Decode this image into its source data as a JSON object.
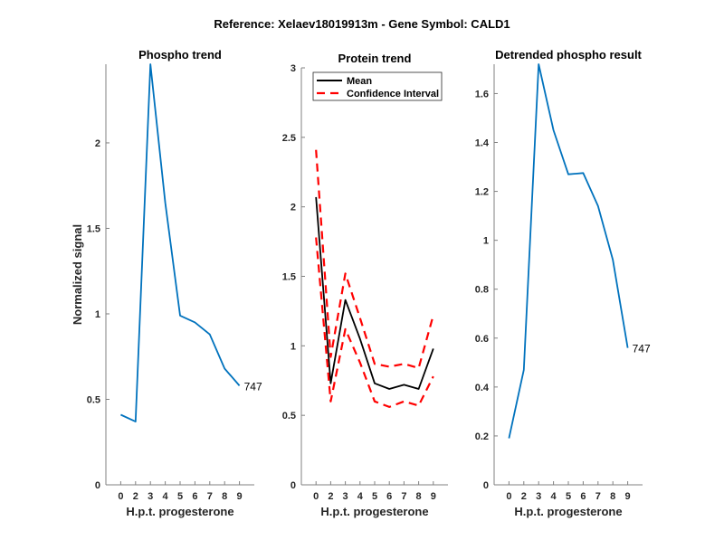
{
  "figure_title": "Reference:  Xelaev18019913m - Gene Symbol:  CALD1",
  "chart_data": [
    {
      "type": "line",
      "title": "Phospho trend",
      "xlabel": "H.p.t. progesterone",
      "ylabel": "Normalized signal",
      "categories": [
        "0",
        "2",
        "3",
        "4",
        "5",
        "6",
        "7",
        "8",
        "9"
      ],
      "ylim": [
        0,
        2.46
      ],
      "yticks": [
        0,
        0.5,
        1,
        1.5,
        2
      ],
      "ytick_labels": [
        "0",
        "0.5",
        "1",
        "1.5",
        "2"
      ],
      "series": [
        {
          "name": "747",
          "color": "#0072BD",
          "style": "solid",
          "values": [
            0.41,
            0.37,
            2.46,
            1.65,
            0.99,
            0.95,
            0.88,
            0.68,
            0.58
          ]
        }
      ],
      "annotation": "747"
    },
    {
      "type": "line",
      "title": "Protein trend",
      "xlabel": "H.p.t. progesterone",
      "ylabel": "",
      "categories": [
        "0",
        "2",
        "3",
        "4",
        "5",
        "6",
        "7",
        "8",
        "9"
      ],
      "ylim": [
        0,
        3
      ],
      "yticks": [
        0,
        0.5,
        1,
        1.5,
        2,
        2.5,
        3
      ],
      "ytick_labels": [
        "0",
        "0.5",
        "1",
        "1.5",
        "2",
        "2.5",
        "3"
      ],
      "legend": {
        "position": "top-left",
        "entries": [
          "Mean",
          "Confidence Interval"
        ]
      },
      "series": [
        {
          "name": "Mean",
          "color": "#000000",
          "style": "solid",
          "values": [
            2.07,
            0.73,
            1.33,
            1.05,
            0.73,
            0.69,
            0.72,
            0.69,
            0.98
          ]
        },
        {
          "name": "Confidence Interval (upper)",
          "color": "#FF0000",
          "style": "dashed",
          "values": [
            2.41,
            0.92,
            1.52,
            1.2,
            0.87,
            0.85,
            0.87,
            0.84,
            1.22
          ]
        },
        {
          "name": "Confidence Interval (lower)",
          "color": "#FF0000",
          "style": "dashed",
          "values": [
            1.78,
            0.6,
            1.12,
            0.88,
            0.6,
            0.56,
            0.6,
            0.57,
            0.78
          ]
        }
      ]
    },
    {
      "type": "line",
      "title": "Detrended phospho result",
      "xlabel": "H.p.t. progesterone",
      "ylabel": "",
      "categories": [
        "0",
        "2",
        "3",
        "4",
        "5",
        "6",
        "7",
        "8",
        "9"
      ],
      "ylim": [
        0,
        1.72
      ],
      "yticks": [
        0,
        0.2,
        0.4,
        0.6,
        0.8,
        1,
        1.2,
        1.4,
        1.6
      ],
      "ytick_labels": [
        "0",
        "0.2",
        "0.4",
        "0.6",
        "0.8",
        "1",
        "1.2",
        "1.4",
        "1.6"
      ],
      "series": [
        {
          "name": "747",
          "color": "#0072BD",
          "style": "solid",
          "values": [
            0.19,
            0.47,
            1.72,
            1.45,
            1.27,
            1.275,
            1.14,
            0.92,
            0.56
          ]
        }
      ],
      "annotation": "747"
    }
  ]
}
